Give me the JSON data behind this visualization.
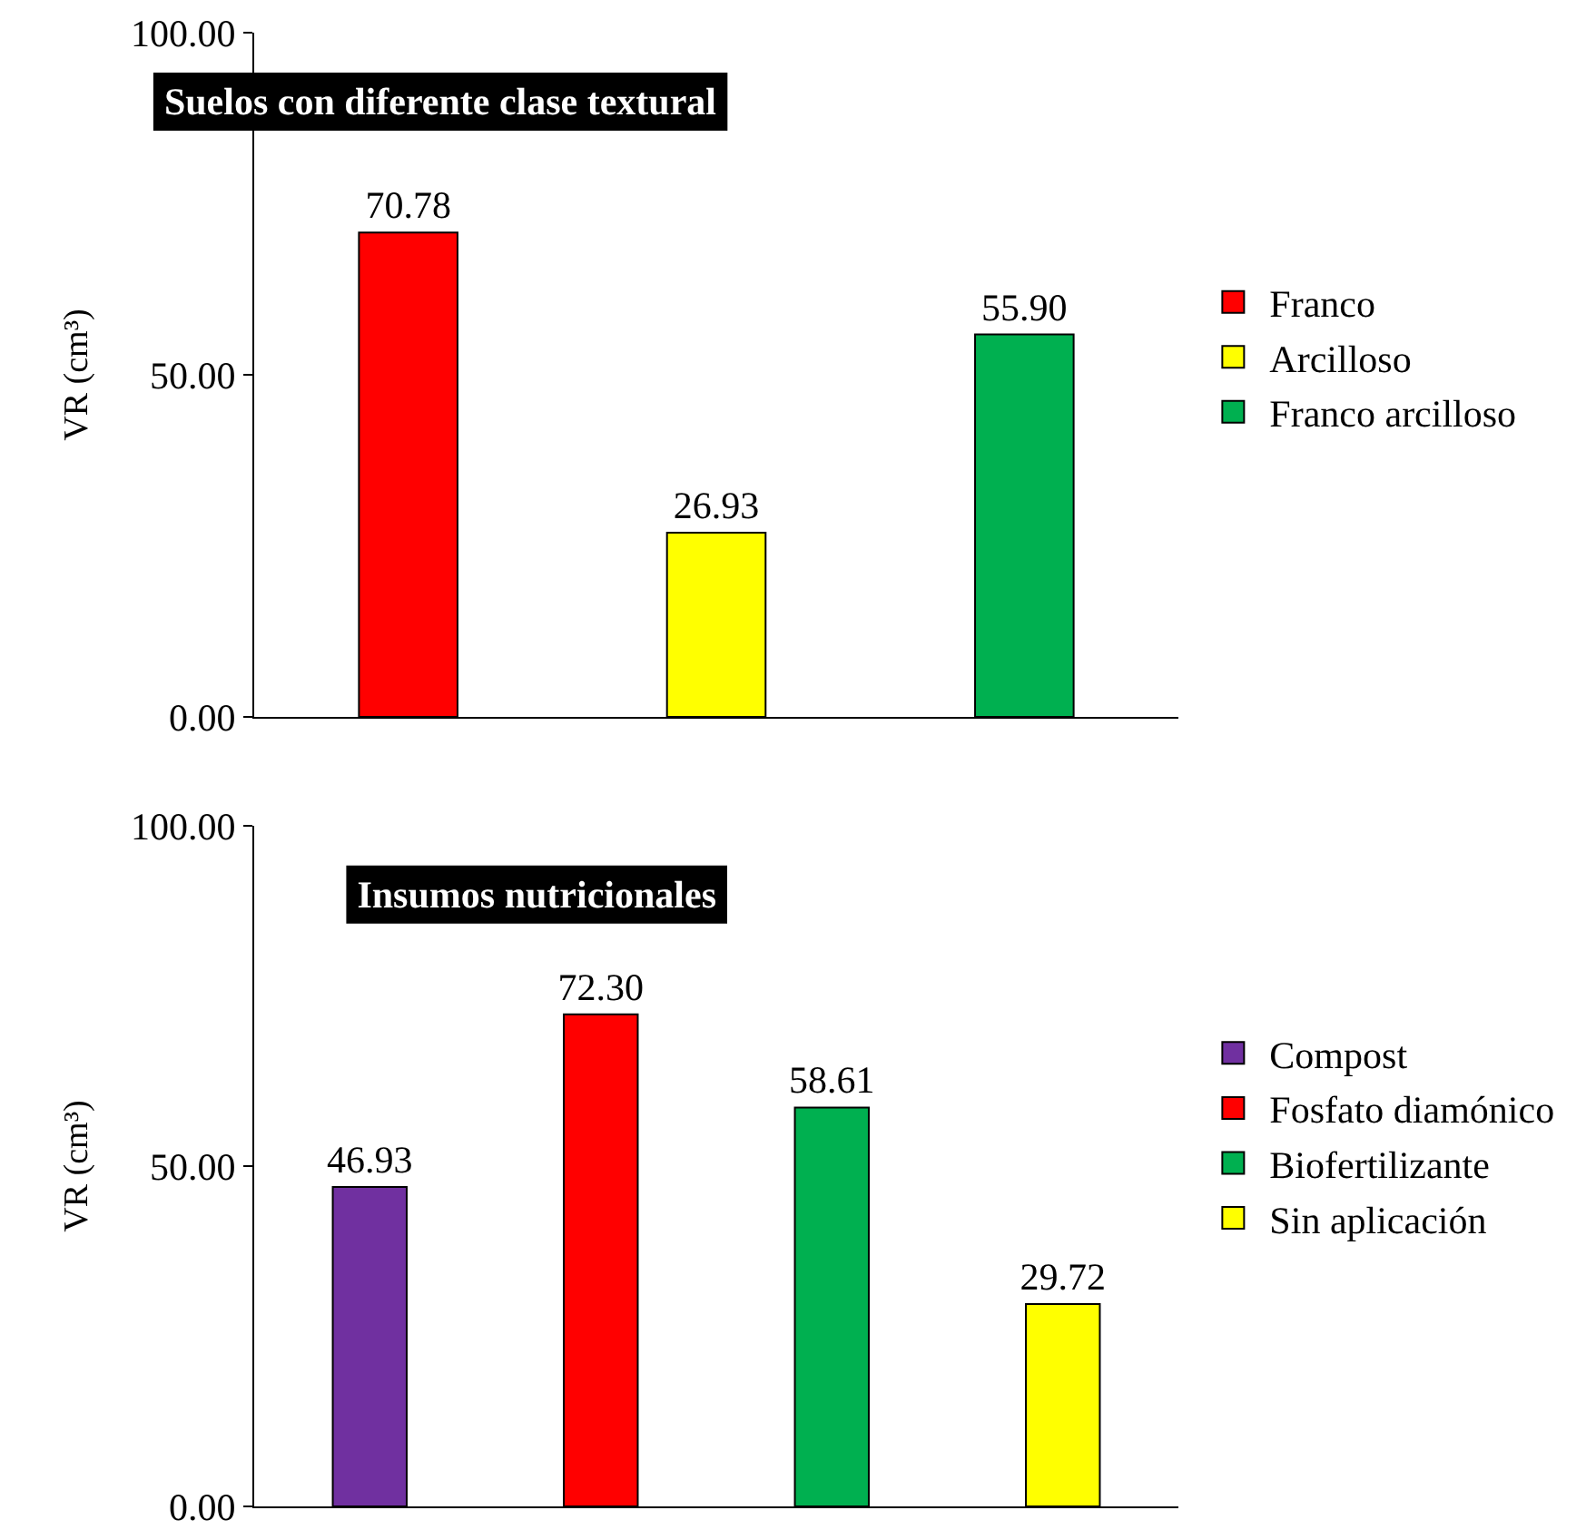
{
  "chart_data": [
    {
      "type": "bar",
      "title": "Suelos con diferente clase textural",
      "ylabel": "VR (cm³)",
      "categories": [
        null,
        null,
        null
      ],
      "ylim": [
        0,
        100
      ],
      "yticks": [
        {
          "value": 0,
          "label": "0.00"
        },
        {
          "value": 50,
          "label": "50.00"
        },
        {
          "value": 100,
          "label": "100.00"
        }
      ],
      "legend": "right",
      "tick_labels": "y",
      "series": [
        {
          "name": "Franco",
          "color": "#ff0000",
          "values": [
            70.78,
            null,
            null
          ],
          "value_labels": [
            "70.78",
            null,
            null
          ]
        },
        {
          "name": "Arcilloso",
          "color": "#ffff00",
          "values": [
            null,
            26.93,
            null
          ],
          "value_labels": [
            null,
            "26.93",
            null
          ]
        },
        {
          "name": "Franco arcilloso",
          "color": "#00b050",
          "values": [
            null,
            null,
            55.9
          ],
          "value_labels": [
            null,
            null,
            "55.90"
          ]
        }
      ]
    },
    {
      "type": "bar",
      "title": "Insumos nutricionales",
      "ylabel": "VR (cm³)",
      "categories": [
        null,
        null,
        null,
        null
      ],
      "ylim": [
        0,
        100
      ],
      "yticks": [
        {
          "value": 0,
          "label": "0.00"
        },
        {
          "value": 50,
          "label": "50.00"
        },
        {
          "value": 100,
          "label": "100.00"
        }
      ],
      "legend": "right",
      "tick_labels": "y",
      "series": [
        {
          "name": "Compost",
          "color": "#7030a0",
          "values": [
            46.93,
            null,
            null,
            null
          ],
          "value_labels": [
            "46.93",
            null,
            null,
            null
          ]
        },
        {
          "name": "Fosfato diamónico",
          "color": "#ff0000",
          "values": [
            null,
            72.3,
            null,
            null
          ],
          "value_labels": [
            null,
            "72.30",
            null,
            null
          ]
        },
        {
          "name": "Biofertilizante",
          "color": "#00b050",
          "values": [
            null,
            null,
            58.61,
            null
          ],
          "value_labels": [
            null,
            null,
            "58.61",
            null
          ]
        },
        {
          "name": "Sin aplicación",
          "color": "#ffff00",
          "values": [
            null,
            null,
            null,
            29.72
          ],
          "value_labels": [
            null,
            null,
            null,
            "29.72"
          ]
        }
      ]
    }
  ]
}
